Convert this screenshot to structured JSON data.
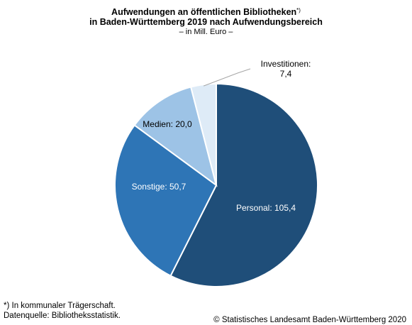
{
  "chart_data": {
    "type": "pie",
    "title_line1": "Aufwendungen an öffentlichen Bibliotheken",
    "title_marker": "*)",
    "title_line2": "in Baden-Württemberg 2019 nach Aufwendungsbereich",
    "subtitle": "– in Mill. Euro –",
    "unit": "Mill. Euro",
    "slices": [
      {
        "label": "Personal",
        "value": 105.4,
        "display": "105,4",
        "color": "#1f4e79",
        "text_color": "#ffffff"
      },
      {
        "label": "Sonstige",
        "value": 50.7,
        "display": "50,7",
        "color": "#2e75b6",
        "text_color": "#ffffff"
      },
      {
        "label": "Medien",
        "value": 20.0,
        "display": "20,0",
        "color": "#9dc3e6",
        "text_color": "#000000"
      },
      {
        "label": "Investitionen",
        "value": 7.4,
        "display": "7,4",
        "color": "#deebf7",
        "text_color": "#000000"
      }
    ],
    "start": "12 o'clock",
    "direction": "clockwise",
    "legend": "none"
  },
  "footnote_line1": "*) In kommunaler Trägerschaft.",
  "footnote_line2": "Datenquelle: Bibliotheksstatistik.",
  "source": "© Statistisches Landesamt Baden-Württemberg 2020"
}
